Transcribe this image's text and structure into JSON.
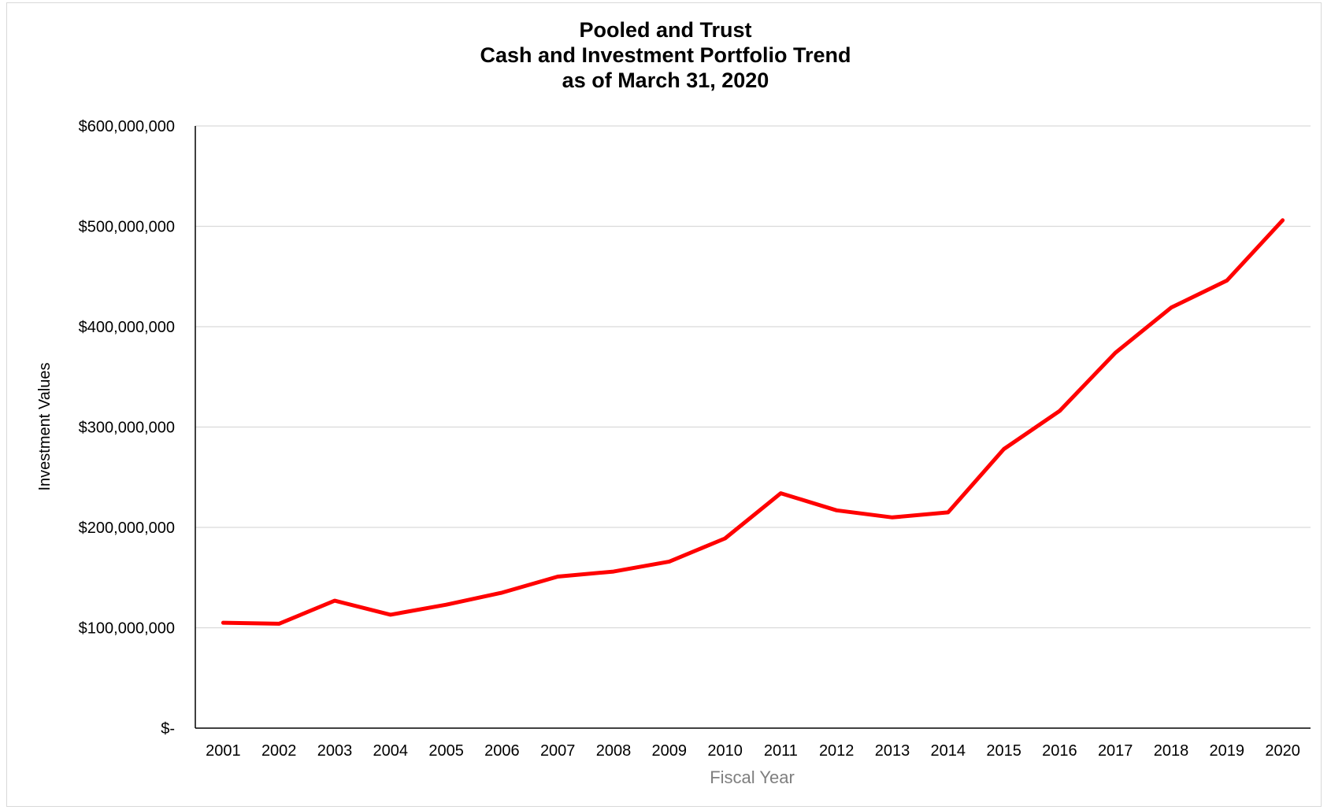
{
  "chart_data": {
    "type": "line",
    "title": [
      "Pooled and Trust",
      "Cash and Investment Portfolio Trend",
      "as of March 31, 2020"
    ],
    "xlabel": "Fiscal Year",
    "ylabel": "Investment Values",
    "ylim": [
      0,
      600000000
    ],
    "y_ticks": [
      {
        "value": 0,
        "label": "$-"
      },
      {
        "value": 100000000,
        "label": "$100,000,000"
      },
      {
        "value": 200000000,
        "label": "$200,000,000"
      },
      {
        "value": 300000000,
        "label": "$300,000,000"
      },
      {
        "value": 400000000,
        "label": "$400,000,000"
      },
      {
        "value": 500000000,
        "label": "$500,000,000"
      },
      {
        "value": 600000000,
        "label": "$600,000,000"
      }
    ],
    "grid": true,
    "legend": "none",
    "categories": [
      "2001",
      "2002",
      "2003",
      "2004",
      "2005",
      "2006",
      "2007",
      "2008",
      "2009",
      "2010",
      "2011",
      "2012",
      "2013",
      "2014",
      "2015",
      "2016",
      "2017",
      "2018",
      "2019",
      "2020"
    ],
    "series": [
      {
        "color": "#ff0000",
        "values": [
          105000000,
          104000000,
          127000000,
          113000000,
          123000000,
          135000000,
          151000000,
          156000000,
          166000000,
          189000000,
          234000000,
          217000000,
          210000000,
          215000000,
          278000000,
          316000000,
          374000000,
          419000000,
          446000000,
          506000000
        ]
      }
    ]
  }
}
